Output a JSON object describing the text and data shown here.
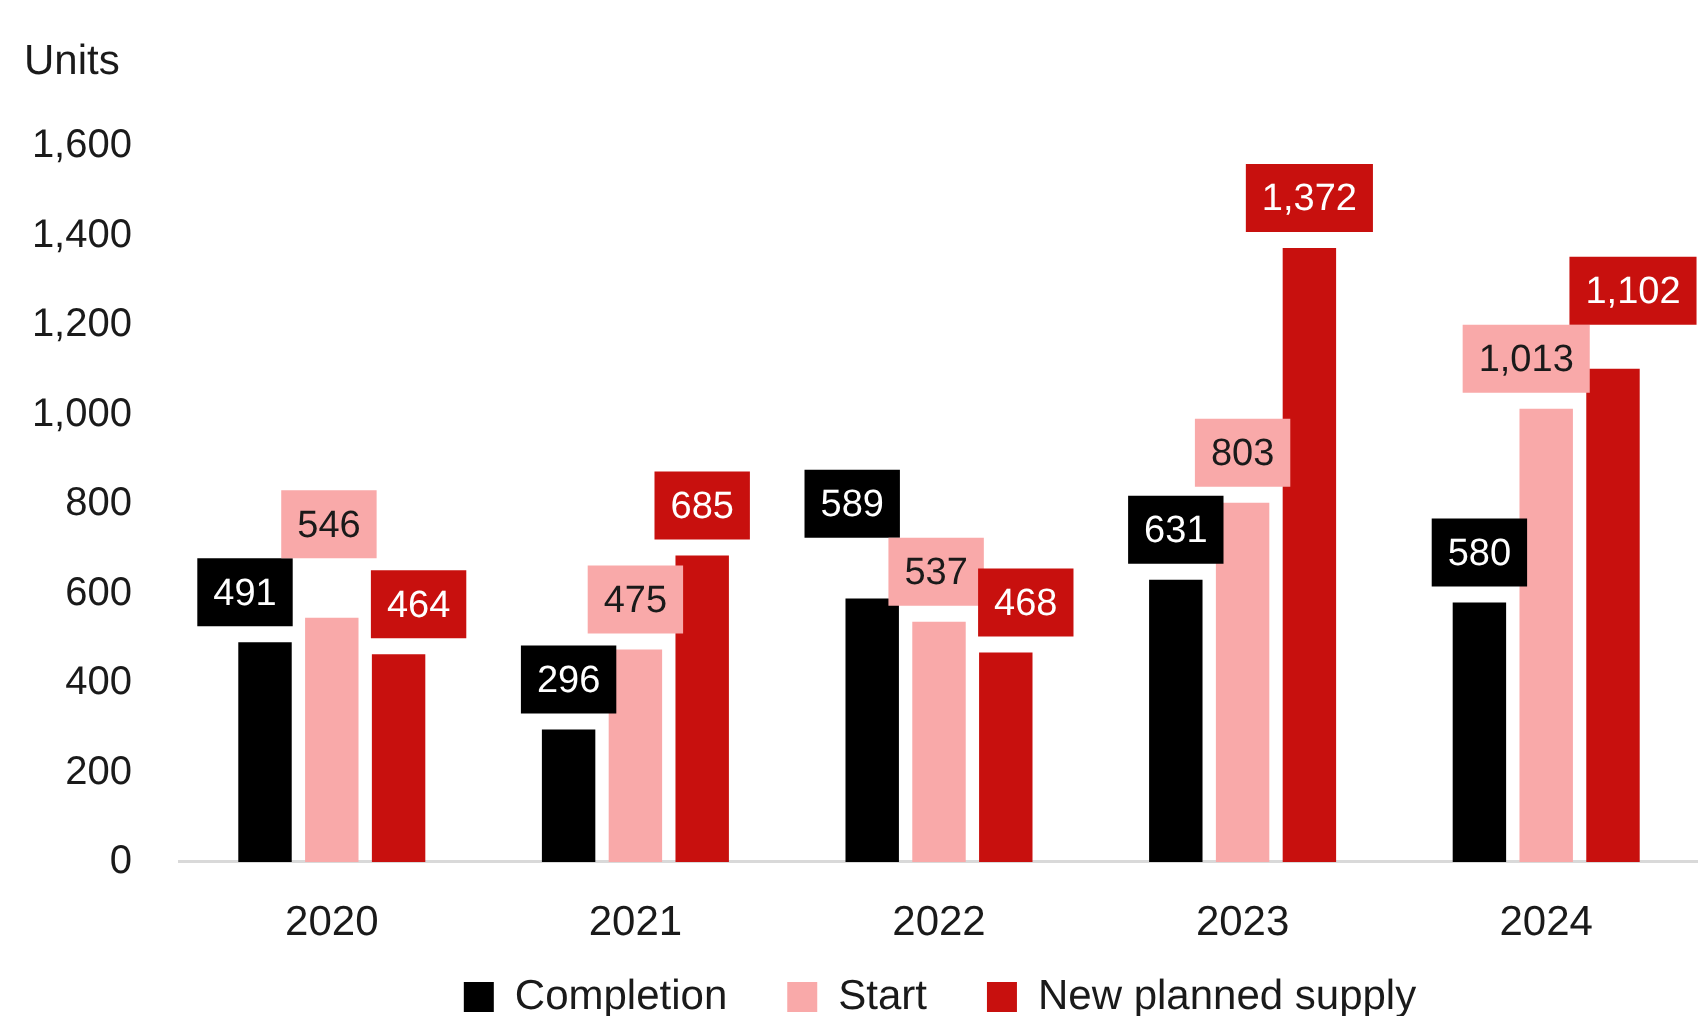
{
  "chart_data": {
    "type": "bar",
    "ylabel": "Units",
    "categories": [
      "2020",
      "2021",
      "2022",
      "2023",
      "2024"
    ],
    "series": [
      {
        "name": "Completion",
        "color": "#000000",
        "values": [
          491,
          296,
          589,
          631,
          580
        ],
        "value_labels": [
          "491",
          "296",
          "589",
          "631",
          "580"
        ]
      },
      {
        "name": "Start",
        "color": "#f9a9a9",
        "values": [
          546,
          475,
          537,
          803,
          1013
        ],
        "value_labels": [
          "546",
          "475",
          "537",
          "803",
          "1,013"
        ]
      },
      {
        "name": "New planned supply",
        "color": "#c8100e",
        "values": [
          464,
          685,
          468,
          1372,
          1102
        ],
        "value_labels": [
          "464",
          "685",
          "468",
          "1,372",
          "1,102"
        ]
      }
    ],
    "ylim": [
      0,
      1600
    ],
    "yticks": [
      0,
      200,
      400,
      600,
      800,
      {
        "value": 1000,
        "label": "1,000"
      },
      {
        "value": 1200,
        "label": "1,200"
      },
      {
        "value": 1400,
        "label": "1,400"
      },
      {
        "value": 1600,
        "label": "1,600"
      }
    ],
    "grid": false,
    "legend": "bottom"
  }
}
